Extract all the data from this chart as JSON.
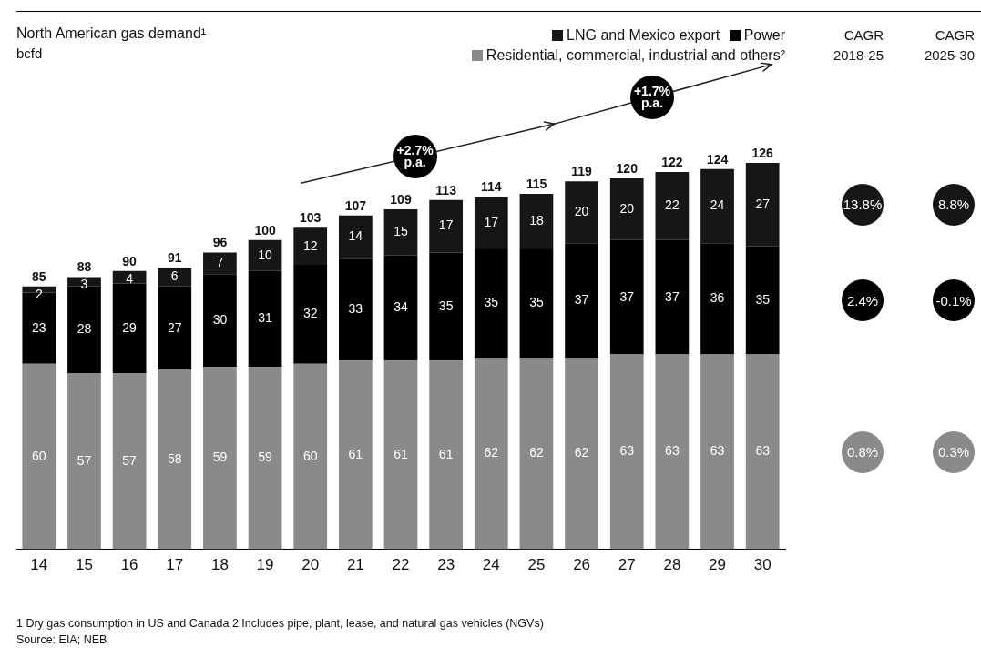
{
  "chart_data": [
    {
      "type": "bar",
      "title": "North American gas demand¹",
      "subtitle": "bcfd",
      "stacked": true,
      "data_labels": true,
      "legend": "top right",
      "grid": false,
      "categories": [
        "14",
        "15",
        "16",
        "17",
        "18",
        "19",
        "20",
        "21",
        "22",
        "23",
        "24",
        "25",
        "26",
        "27",
        "28",
        "29",
        "30"
      ],
      "series": [
        {
          "name": "Residential, commercial, industrial and others²",
          "color": "#8a8a8a",
          "values": [
            60,
            57,
            57,
            58,
            59,
            59,
            60,
            61,
            61,
            61,
            62,
            62,
            62,
            63,
            63,
            63,
            63
          ]
        },
        {
          "name": "Power",
          "color": "#000000",
          "values": [
            23,
            28,
            29,
            27,
            30,
            31,
            32,
            33,
            34,
            35,
            35,
            35,
            37,
            37,
            37,
            36,
            35
          ]
        },
        {
          "name": "LNG and Mexico export",
          "color": "#161616",
          "values": [
            2,
            3,
            4,
            6,
            7,
            10,
            12,
            14,
            15,
            17,
            17,
            18,
            20,
            20,
            22,
            24,
            27
          ]
        }
      ],
      "totals": [
        "85",
        "88",
        "90",
        "91",
        "96",
        "100",
        "103",
        "107",
        "109",
        "113",
        "114",
        "115",
        "119",
        "120",
        "122",
        "124",
        "126"
      ],
      "annotations": [
        "+2.7% p.a.",
        "+1.7% p.a.",
        "1 Dry gas consumption in US and Canada  2 Includes pipe, plant, lease, and natural gas vehicles (NGVs)",
        "Source: EIA; NEB"
      ]
    },
    {
      "type": "other",
      "categories": [
        "CAGR\n2018-25",
        "CAGR\n2025-30"
      ],
      "series": [
        {
          "color": "#161616",
          "values": [
            13.8,
            8.8
          ],
          "value_labels": [
            "13.8%",
            "8.8%"
          ]
        },
        {
          "color": "#000000",
          "values": [
            2.4,
            -0.1
          ],
          "value_labels": [
            "2.4%",
            "-0.1%"
          ]
        },
        {
          "color": "#8a8a8a",
          "values": [
            0.8,
            0.3
          ],
          "value_labels": [
            "0.8%",
            "0.3%"
          ]
        }
      ]
    }
  ]
}
